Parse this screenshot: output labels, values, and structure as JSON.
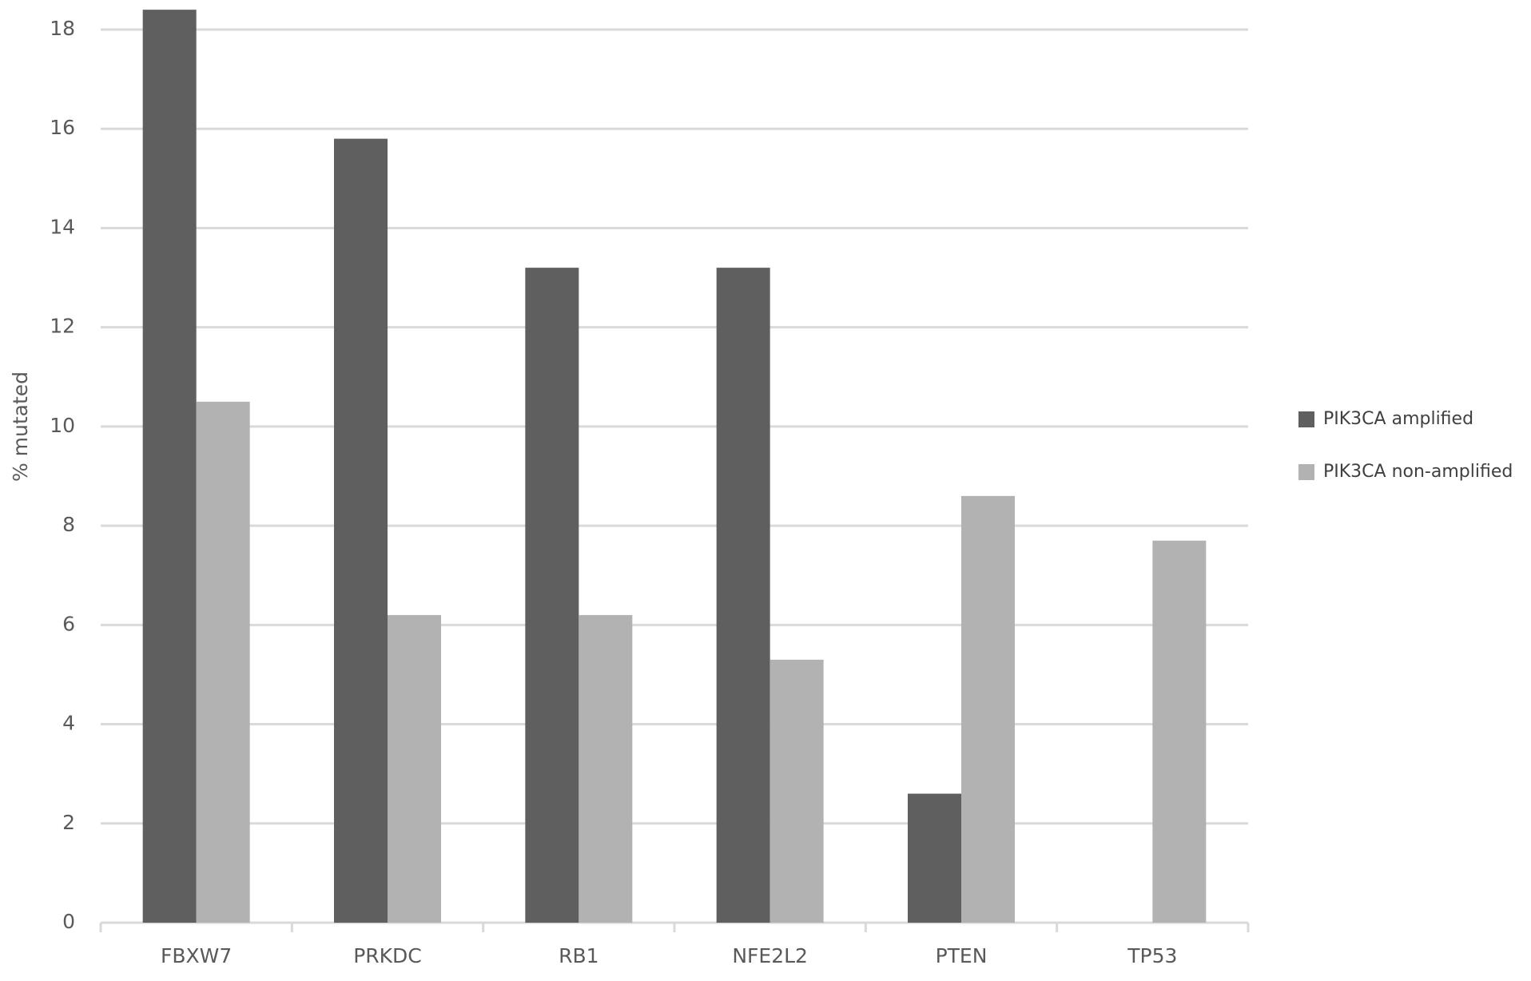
{
  "chart_data": {
    "type": "bar",
    "y_label": "% mutated",
    "categories": [
      "FBXW7",
      "PRKDC",
      "RB1",
      "NFE2L2",
      "PTEN",
      "TP53"
    ],
    "series": [
      {
        "name": "PIK3CA amplified",
        "color": "#5f5f5f",
        "values": [
          18.4,
          15.8,
          13.2,
          13.2,
          2.6,
          0
        ]
      },
      {
        "name": "PIK3CA non-amplified",
        "color": "#b2b2b2",
        "values": [
          10.5,
          6.2,
          6.2,
          5.3,
          8.6,
          7.7
        ]
      }
    ],
    "ylim": [
      0,
      18
    ],
    "yticks": [
      0,
      2,
      4,
      6,
      8,
      10,
      12,
      14,
      16,
      18
    ],
    "grid": true,
    "legend": "right"
  }
}
